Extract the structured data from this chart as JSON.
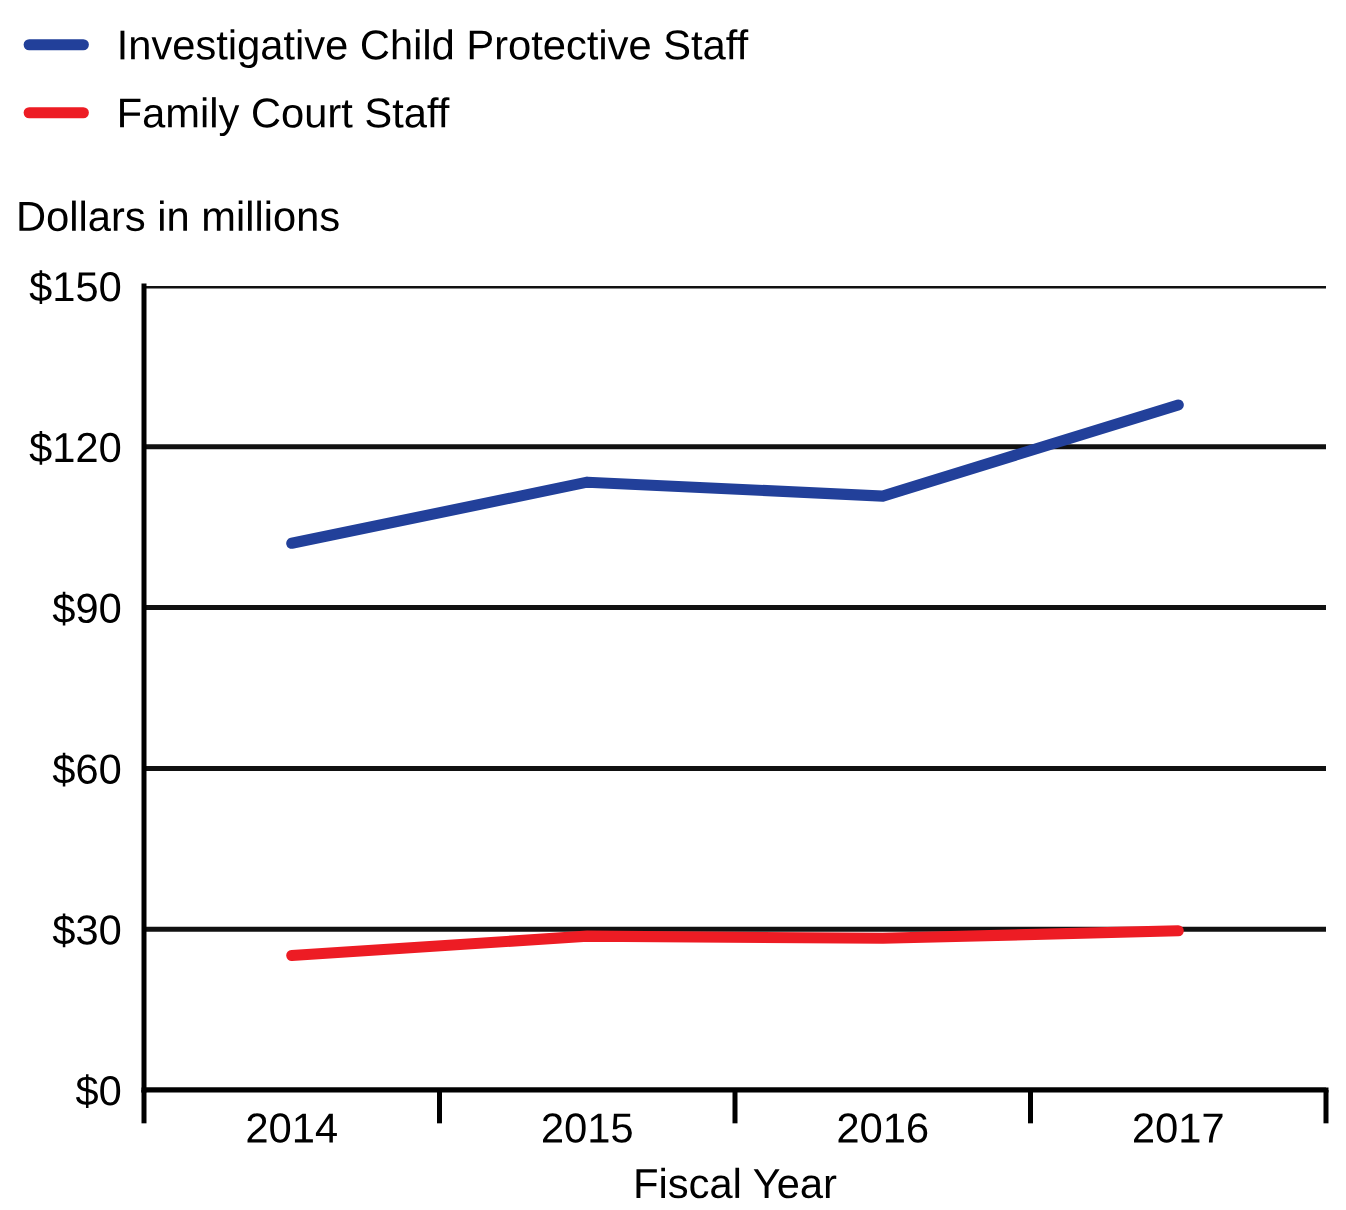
{
  "chart_data": {
    "type": "line",
    "ylabel": "Dollars in millions",
    "xlabel": "Fiscal Year",
    "categories": [
      "2014",
      "2015",
      "2016",
      "2017"
    ],
    "series": [
      {
        "name": "Investigative Child Protective Staff",
        "color": "#22409a",
        "values": [
          102,
          113.4,
          110.8,
          127.8
        ]
      },
      {
        "name": "Family Court Staff",
        "color": "#ed1c24",
        "values": [
          25.1,
          28.7,
          28.3,
          29.7
        ]
      }
    ],
    "ylim": [
      0,
      150
    ],
    "yticks": [
      {
        "value": 0,
        "label": "$0"
      },
      {
        "value": 30,
        "label": "$30"
      },
      {
        "value": 60,
        "label": "$60"
      },
      {
        "value": 90,
        "label": "$90"
      },
      {
        "value": 120,
        "label": "$120"
      },
      {
        "value": 150,
        "label": "$150"
      }
    ],
    "grid": "y",
    "legend": "top left",
    "marker": "none",
    "line_style": "solid"
  }
}
